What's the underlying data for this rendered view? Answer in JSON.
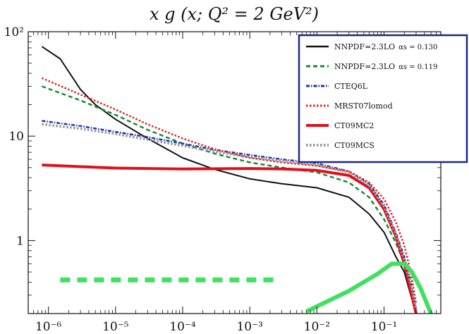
{
  "chart_data": {
    "type": "line",
    "title": "x g (x; Q² = 2 GeV²)",
    "xscale": "log",
    "yscale": "log",
    "xlim": [
      5e-07,
      0.7
    ],
    "ylim": [
      0.2,
      100
    ],
    "x_ticks": [
      {
        "value": 1e-06,
        "label": "10⁻⁶"
      },
      {
        "value": 1e-05,
        "label": "10⁻⁵"
      },
      {
        "value": 0.0001,
        "label": "10⁻⁴"
      },
      {
        "value": 0.001,
        "label": "10⁻³"
      },
      {
        "value": 0.01,
        "label": "10⁻²"
      },
      {
        "value": 0.1,
        "label": "10⁻¹"
      }
    ],
    "y_ticks": [
      {
        "value": 100,
        "label": "10²"
      },
      {
        "value": 10,
        "label": "10"
      },
      {
        "value": 1,
        "label": "1"
      }
    ],
    "legend_position": "top-right",
    "series": [
      {
        "name": "NNPDF=2.3LO",
        "name_suffix": "αs = 0.130",
        "color": "#111111",
        "style": "solid",
        "width": 2,
        "points": [
          [
            8e-07,
            72
          ],
          [
            1.5e-06,
            55
          ],
          [
            3e-06,
            28
          ],
          [
            5e-06,
            20
          ],
          [
            1e-05,
            14.5
          ],
          [
            3e-05,
            9.5
          ],
          [
            0.0001,
            6.2
          ],
          [
            0.0003,
            4.8
          ],
          [
            0.001,
            3.9
          ],
          [
            0.003,
            3.5
          ],
          [
            0.01,
            3.2
          ],
          [
            0.03,
            2.6
          ],
          [
            0.06,
            1.8
          ],
          [
            0.1,
            1.2
          ],
          [
            0.15,
            0.7
          ],
          [
            0.2,
            0.5
          ],
          [
            0.25,
            0.3
          ],
          [
            0.3,
            0.2
          ]
        ]
      },
      {
        "name": "NNPDF=2.3LO",
        "name_suffix": "αs = 0.119",
        "color": "#1a8a3a",
        "style": "dashed",
        "width": 2.5,
        "points": [
          [
            8e-07,
            30
          ],
          [
            3e-06,
            22
          ],
          [
            1e-05,
            16
          ],
          [
            3e-05,
            11.5
          ],
          [
            0.0001,
            8.5
          ],
          [
            0.0003,
            6.8
          ],
          [
            0.001,
            5.6
          ],
          [
            0.003,
            5.0
          ],
          [
            0.01,
            4.5
          ],
          [
            0.03,
            3.6
          ],
          [
            0.06,
            2.6
          ],
          [
            0.1,
            1.6
          ],
          [
            0.15,
            0.95
          ],
          [
            0.2,
            0.6
          ],
          [
            0.25,
            0.35
          ],
          [
            0.3,
            0.2
          ]
        ]
      },
      {
        "name": "CTEQ6L",
        "name_suffix": "",
        "color": "#2233aa",
        "style": "dashdot",
        "width": 2.5,
        "points": [
          [
            8e-07,
            14
          ],
          [
            3e-06,
            12.5
          ],
          [
            1e-05,
            11
          ],
          [
            3e-05,
            9.8
          ],
          [
            0.0001,
            8.5
          ],
          [
            0.0003,
            7.4
          ],
          [
            0.001,
            6.6
          ],
          [
            0.003,
            6.0
          ],
          [
            0.01,
            5.5
          ],
          [
            0.03,
            4.6
          ],
          [
            0.06,
            3.5
          ],
          [
            0.1,
            2.2
          ],
          [
            0.15,
            1.2
          ],
          [
            0.2,
            0.7
          ],
          [
            0.25,
            0.4
          ],
          [
            0.3,
            0.22
          ]
        ]
      },
      {
        "name": "MRST07lomod",
        "name_suffix": "",
        "color": "#dd2222",
        "style": "dotted",
        "width": 2.5,
        "points": [
          [
            8e-07,
            36
          ],
          [
            3e-06,
            25
          ],
          [
            1e-05,
            18
          ],
          [
            3e-05,
            13
          ],
          [
            0.0001,
            9.5
          ],
          [
            0.0003,
            7.5
          ],
          [
            0.001,
            6.2
          ],
          [
            0.003,
            5.6
          ],
          [
            0.01,
            5.2
          ],
          [
            0.03,
            4.6
          ],
          [
            0.06,
            3.6
          ],
          [
            0.1,
            2.5
          ],
          [
            0.15,
            1.5
          ],
          [
            0.2,
            0.9
          ],
          [
            0.25,
            0.5
          ],
          [
            0.3,
            0.25
          ]
        ]
      },
      {
        "name": "CT09MC2",
        "name_suffix": "",
        "color": "#e0101a",
        "style": "solid",
        "width": 4,
        "points": [
          [
            8e-07,
            5.3
          ],
          [
            3e-06,
            5.1
          ],
          [
            1e-05,
            4.95
          ],
          [
            0.0001,
            4.85
          ],
          [
            0.001,
            4.9
          ],
          [
            0.003,
            4.85
          ],
          [
            0.01,
            4.7
          ],
          [
            0.03,
            4.2
          ],
          [
            0.06,
            3.2
          ],
          [
            0.1,
            2.0
          ],
          [
            0.15,
            1.1
          ],
          [
            0.2,
            0.6
          ],
          [
            0.25,
            0.33
          ],
          [
            0.3,
            0.2
          ]
        ]
      },
      {
        "name": "CT09MCS",
        "name_suffix": "",
        "color": "#999999",
        "style": "dotted",
        "width": 3.5,
        "points": [
          [
            8e-07,
            13
          ],
          [
            3e-06,
            11.8
          ],
          [
            1e-05,
            10.5
          ],
          [
            3e-05,
            9.3
          ],
          [
            0.0001,
            8.1
          ],
          [
            0.0003,
            7.1
          ],
          [
            0.001,
            6.3
          ],
          [
            0.003,
            5.8
          ],
          [
            0.01,
            5.3
          ],
          [
            0.03,
            4.5
          ],
          [
            0.06,
            3.4
          ],
          [
            0.1,
            2.1
          ],
          [
            0.15,
            1.15
          ],
          [
            0.2,
            0.65
          ],
          [
            0.25,
            0.38
          ],
          [
            0.3,
            0.22
          ]
        ]
      },
      {
        "name": "",
        "name_suffix": "",
        "color": "#40e060",
        "style": "bigdash",
        "width": 7,
        "points": [
          [
            1.5e-06,
            0.42
          ],
          [
            0.0025,
            0.42
          ]
        ]
      },
      {
        "name": "",
        "name_suffix": "",
        "color": "#40e060",
        "style": "solid",
        "width": 6,
        "points": [
          [
            0.007,
            0.21
          ],
          [
            0.03,
            0.33
          ],
          [
            0.08,
            0.48
          ],
          [
            0.13,
            0.6
          ],
          [
            0.2,
            0.6
          ],
          [
            0.26,
            0.5
          ],
          [
            0.35,
            0.35
          ],
          [
            0.5,
            0.2
          ]
        ]
      }
    ]
  }
}
